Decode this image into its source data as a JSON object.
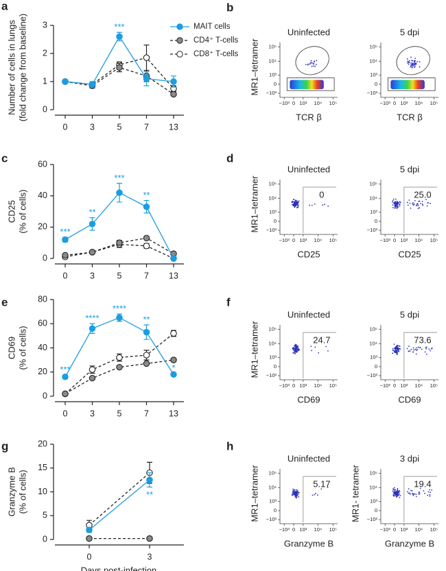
{
  "chart_data": [
    {
      "type": "line",
      "panel": "a",
      "ylabel": [
        "Number of cells in lungs",
        "(fold change from baseline)"
      ],
      "categories": [
        "0",
        "3",
        "5",
        "7",
        "13"
      ],
      "ylim": [
        0,
        3
      ],
      "yticks": [
        0,
        1,
        2,
        3
      ],
      "legend": "upper right",
      "annotations": [
        null,
        null,
        "***",
        null,
        null
      ],
      "annotation_color": "#1b9de2",
      "annotation_position": "above",
      "series": [
        {
          "name": "MAIT cells",
          "color": "#1b9de2",
          "marker": "filled",
          "dashed": false,
          "values": [
            1,
            0.9,
            2.6,
            1.1,
            1.0
          ],
          "errors": [
            0,
            0.1,
            0.15,
            0.25,
            0.2
          ]
        },
        {
          "name": "CD4⁺ T-cells",
          "color": "#222222",
          "marker": "gray",
          "dashed": true,
          "values": [
            1,
            0.85,
            1.5,
            1.2,
            0.55
          ],
          "errors": [
            0,
            0.08,
            0.15,
            0.2,
            0.05
          ]
        },
        {
          "name": "CD8⁺ T-cells",
          "color": "#222222",
          "marker": "open",
          "dashed": true,
          "values": [
            1,
            0.9,
            1.6,
            1.85,
            0.75
          ],
          "errors": [
            0,
            0.05,
            0.1,
            0.45,
            0.1
          ]
        }
      ]
    },
    {
      "type": "line",
      "panel": "c",
      "ylabel": [
        "CD25",
        "(% of cells)"
      ],
      "categories": [
        "0",
        "3",
        "5",
        "7",
        "13"
      ],
      "ylim": [
        0,
        60
      ],
      "yticks": [
        0,
        20,
        40,
        60
      ],
      "annotations": [
        "***",
        "**",
        "***",
        "**",
        null
      ],
      "annotation_color": "#1b9de2",
      "annotation_position": "above",
      "series": [
        {
          "color": "#1b9de2",
          "marker": "filled",
          "dashed": false,
          "values": [
            12,
            22,
            42,
            33,
            0
          ],
          "errors": [
            1.5,
            4,
            6,
            4,
            1
          ]
        },
        {
          "color": "#222222",
          "marker": "gray",
          "dashed": true,
          "values": [
            2,
            4,
            10,
            13,
            3
          ],
          "errors": [
            0.5,
            1,
            1.5,
            1,
            0.5
          ]
        },
        {
          "color": "#222222",
          "marker": "open",
          "dashed": true,
          "values": [
            1,
            4,
            9,
            8,
            0
          ],
          "errors": [
            0.5,
            1,
            2,
            1.5,
            0.5
          ]
        }
      ]
    },
    {
      "type": "line",
      "panel": "e",
      "ylabel": [
        "CD69",
        "(% of cells)"
      ],
      "categories": [
        "0",
        "3",
        "5",
        "7",
        "13"
      ],
      "ylim": [
        0,
        80
      ],
      "yticks": [
        0,
        20,
        40,
        60,
        80
      ],
      "annotations": [
        "***",
        "****",
        "****",
        "**",
        "*"
      ],
      "annotation_color": "#1b9de2",
      "annotation_position": "above",
      "series": [
        {
          "color": "#1b9de2",
          "marker": "filled",
          "dashed": false,
          "values": [
            16,
            56,
            65,
            53,
            18
          ],
          "errors": [
            1.5,
            4,
            3,
            6,
            1
          ]
        },
        {
          "color": "#222222",
          "marker": "gray",
          "dashed": true,
          "values": [
            2,
            15,
            24,
            27,
            30
          ],
          "errors": [
            0.5,
            1,
            1,
            1,
            1.5
          ]
        },
        {
          "color": "#222222",
          "marker": "open",
          "dashed": true,
          "values": [
            2,
            22,
            32,
            34,
            52
          ],
          "errors": [
            1,
            3,
            3,
            4,
            2.5
          ]
        }
      ]
    },
    {
      "type": "line",
      "panel": "g",
      "ylabel": [
        "Granzyme B",
        "(% of cells)"
      ],
      "xlabel": "Days post-infection",
      "categories": [
        "0",
        "3"
      ],
      "ylim": [
        0,
        20
      ],
      "yticks": [
        0,
        5,
        10,
        15,
        20
      ],
      "annotations": [
        null,
        "**"
      ],
      "annotation_color": "#1b9de2",
      "annotation_position": "below",
      "series": [
        {
          "color": "#1b9de2",
          "marker": "filled",
          "dashed": false,
          "values": [
            2,
            12.5
          ],
          "errors": [
            0.5,
            1.5
          ]
        },
        {
          "color": "#222222",
          "marker": "gray",
          "dashed": true,
          "values": [
            0.2,
            0.2
          ],
          "errors": [
            0.1,
            0.1
          ]
        },
        {
          "color": "#222222",
          "marker": "open",
          "dashed": true,
          "values": [
            3,
            14
          ],
          "errors": [
            1,
            2.2
          ]
        }
      ]
    },
    {
      "type": "flow",
      "panel": "b",
      "gate": "ellipse",
      "xlim": [
        -2000,
        200000
      ],
      "ylim": [
        -2000,
        200000
      ],
      "xticks": [
        {
          "value": -1000,
          "label": "−10³"
        },
        0,
        {
          "value": 1000,
          "label": "10³"
        },
        {
          "value": 10000,
          "label": "10⁴"
        },
        {
          "value": 100000,
          "label": "10⁵"
        }
      ],
      "yticks": [
        {
          "value": -1000,
          "label": "−10³"
        },
        0,
        {
          "value": 1000,
          "label": "10³"
        },
        {
          "value": 10000,
          "label": "10⁴"
        },
        {
          "value": 100000,
          "label": "10⁵"
        }
      ],
      "plots": [
        {
          "title": "Uninfected",
          "xlabel": "TCR β",
          "ylabel": "MR1–tetramer"
        },
        {
          "title": "5 dpi",
          "xlabel": "TCR β"
        }
      ]
    },
    {
      "type": "flow",
      "panel": "d",
      "gate": "rectangle",
      "xlim": [
        -2000,
        200000
      ],
      "ylim": [
        -2000,
        200000
      ],
      "xticks": [
        {
          "value": -1000,
          "label": "−10³"
        },
        0,
        {
          "value": 1000,
          "label": "10³"
        },
        {
          "value": 10000,
          "label": "10⁴"
        },
        {
          "value": 100000,
          "label": "10⁵"
        }
      ],
      "yticks": [
        {
          "value": -1000,
          "label": "−10³"
        },
        0,
        {
          "value": 1000,
          "label": "10³"
        },
        {
          "value": 10000,
          "label": "10⁴"
        },
        {
          "value": 100000,
          "label": "10⁵"
        }
      ],
      "plots": [
        {
          "title": "Uninfected",
          "xlabel": "CD25",
          "ylabel": "MR1–tetramer",
          "values": [
            0
          ]
        },
        {
          "title": "5 dpi",
          "xlabel": "CD25",
          "values": [
            25.0
          ],
          "value_labels": [
            "25.0"
          ]
        }
      ]
    },
    {
      "type": "flow",
      "panel": "f",
      "gate": "rectangle",
      "xlim": [
        -2000,
        200000
      ],
      "ylim": [
        -2000,
        200000
      ],
      "xticks": [
        {
          "value": -1000,
          "label": "−10³"
        },
        0,
        {
          "value": 1000,
          "label": "10³"
        },
        {
          "value": 10000,
          "label": "10⁴"
        },
        {
          "value": 100000,
          "label": "10⁵"
        }
      ],
      "yticks": [
        {
          "value": -1000,
          "label": "−10³"
        },
        0,
        {
          "value": 1000,
          "label": "10³"
        },
        {
          "value": 10000,
          "label": "10⁴"
        },
        {
          "value": 100000,
          "label": "10⁵"
        }
      ],
      "plots": [
        {
          "title": "Uninfected",
          "xlabel": "CD69",
          "ylabel": "MR1–tetramer",
          "values": [
            24.7
          ]
        },
        {
          "title": "5 dpi",
          "xlabel": "CD69",
          "values": [
            73.6
          ]
        }
      ]
    },
    {
      "type": "flow",
      "panel": "h",
      "gate": "rectangle",
      "xlim": [
        -2000,
        200000
      ],
      "ylim": [
        -2000,
        200000
      ],
      "xticks": [
        {
          "value": -1000,
          "label": "−10³"
        },
        0,
        {
          "value": 1000,
          "label": "10³"
        },
        {
          "value": 10000,
          "label": "10⁴"
        },
        {
          "value": 100000,
          "label": "10⁵"
        }
      ],
      "yticks": [
        {
          "value": -1000,
          "label": "−10³"
        },
        0,
        {
          "value": 1000,
          "label": "10³"
        },
        {
          "value": 10000,
          "label": "10⁴"
        },
        {
          "value": 100000,
          "label": "10⁵"
        }
      ],
      "plots": [
        {
          "title": "Uninfected",
          "xlabel": "Granzyme B",
          "ylabel": "MR1–tetramer",
          "values": [
            5.17
          ]
        },
        {
          "title": "3 dpi",
          "xlabel": "Granzyme B",
          "ylabel": "MR1- tetramer",
          "values": [
            19.4
          ]
        }
      ]
    }
  ]
}
